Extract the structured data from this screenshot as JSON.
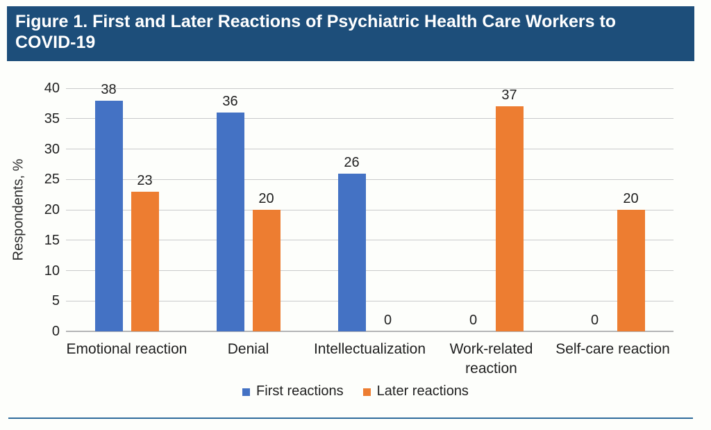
{
  "figure": {
    "title_lines": [
      "Figure 1. First and Later Reactions of Psychiatric Health Care Workers to",
      "COVID-19"
    ]
  },
  "chart_data": {
    "type": "bar",
    "title": "Figure 1. First and Later Reactions of Psychiatric Health Care Workers to COVID-19",
    "categories": [
      "Emotional reaction",
      "Denial",
      "Intellectualization",
      "Work-related reaction",
      "Self-care reaction"
    ],
    "series": [
      {
        "name": "First reactions",
        "color": "#4472c4",
        "values": [
          38,
          36,
          26,
          0,
          0
        ]
      },
      {
        "name": "Later reactions",
        "color": "#ed7d31",
        "values": [
          23,
          20,
          0,
          37,
          20
        ]
      }
    ],
    "value_labels": [
      [
        "38",
        "36",
        "26",
        "0",
        "0"
      ],
      [
        "23",
        "20",
        "0",
        "37",
        "20"
      ]
    ],
    "xlabel": "",
    "ylabel": "Respondents, %",
    "ylim": [
      0,
      40
    ],
    "ytick_step": 5,
    "yticks": [
      "0",
      "5",
      "10",
      "15",
      "20",
      "25",
      "30",
      "35",
      "40"
    ],
    "grid": true,
    "legend_position": "bottom"
  },
  "colors": {
    "header_bg": "#1d4e7a",
    "header_text": "#ffffff",
    "first_reactions": "#4472c4",
    "later_reactions": "#ed7d31",
    "gridline": "#c9cacb",
    "axis_line": "#b3b4b5",
    "text": "#1f1f1f",
    "divider": "#2e6b9b",
    "background": "#fdfefb"
  }
}
